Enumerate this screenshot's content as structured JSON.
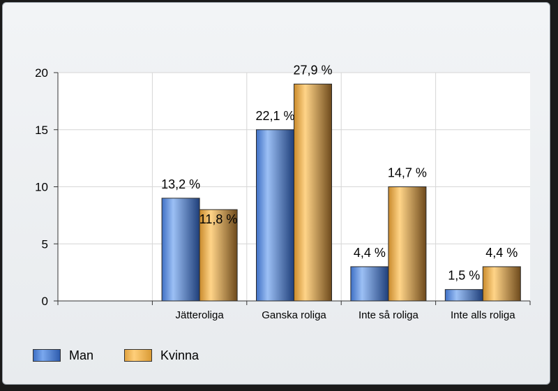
{
  "chart_data": {
    "type": "bar",
    "categories": [
      "Jätteroliga",
      "Ganska roliga",
      "Inte så roliga",
      "Inte alls roliga"
    ],
    "series": [
      {
        "name": "Man",
        "values": [
          9,
          15,
          3,
          1
        ],
        "labels": [
          "13,2 %",
          "22,1 %",
          "4,4 %",
          "1,5 %"
        ],
        "color": "#4f86e0"
      },
      {
        "name": "Kvinna",
        "values": [
          8,
          19,
          10,
          3
        ],
        "labels": [
          "11,8 %",
          "27,9 %",
          "14,7 %",
          "4,4 %"
        ],
        "color": "#f5b14a"
      }
    ],
    "yticks": [
      "0",
      "5",
      "10",
      "15",
      "20"
    ],
    "ylim": [
      0,
      20
    ],
    "grid": true,
    "legend_position": "bottom-left"
  }
}
